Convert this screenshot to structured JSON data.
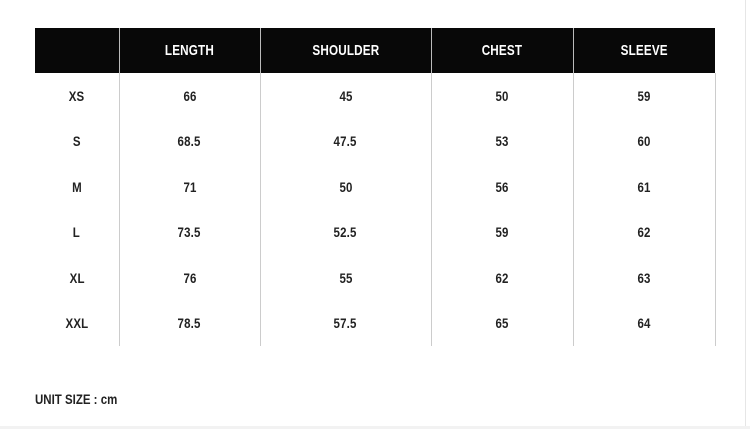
{
  "headers": [
    "",
    "LENGTH",
    "SHOULDER",
    "CHEST",
    "SLEEVE"
  ],
  "rows": [
    [
      "XS",
      "66",
      "45",
      "50",
      "59"
    ],
    [
      "S",
      "68.5",
      "47.5",
      "53",
      "60"
    ],
    [
      "M",
      "71",
      "50",
      "56",
      "61"
    ],
    [
      "L",
      "73.5",
      "52.5",
      "59",
      "62"
    ],
    [
      "XL",
      "76",
      "55",
      "62",
      "63"
    ],
    [
      "XXL",
      "78.5",
      "57.5",
      "65",
      "64"
    ]
  ],
  "unit_note": "UNIT SIZE : cm"
}
